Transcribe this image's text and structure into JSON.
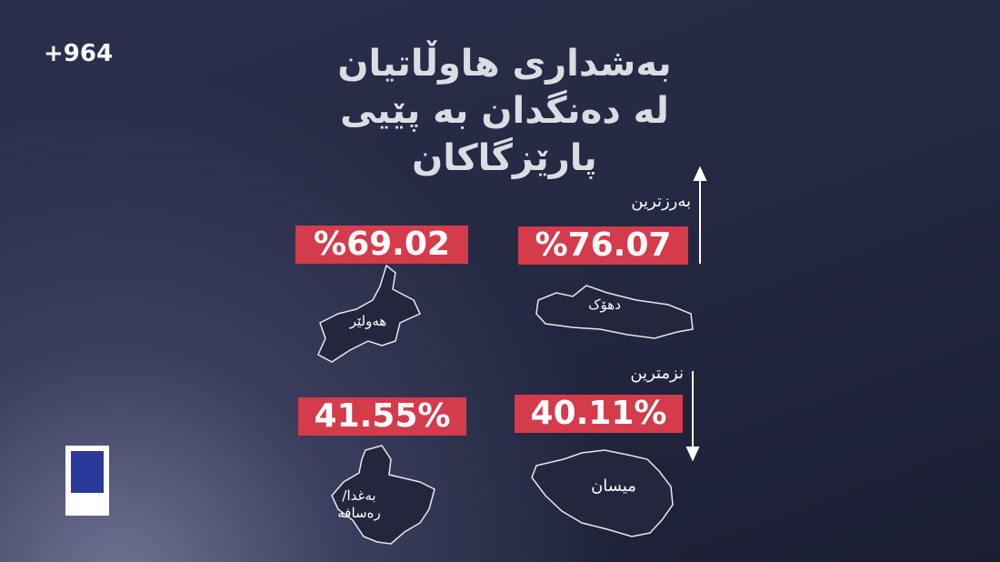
{
  "logo": "+964",
  "title": [
    "بەشداری هاوڵاتیان",
    "لە دەنگدان بە پێیی",
    "پارێزگاکان"
  ],
  "highest_label": "بەرزترین",
  "lowest_label": "نزمترین",
  "provinces": [
    {
      "name": [
        "دهۆک"
      ],
      "value": "%76.07"
    },
    {
      "name": [
        "هەولێر"
      ],
      "value": "%69.02"
    },
    {
      "name": [
        "میسان"
      ],
      "value": "40.11%"
    },
    {
      "name": [
        "بەغدا/",
        "رەسافە"
      ],
      "value": "41.55%"
    }
  ]
}
